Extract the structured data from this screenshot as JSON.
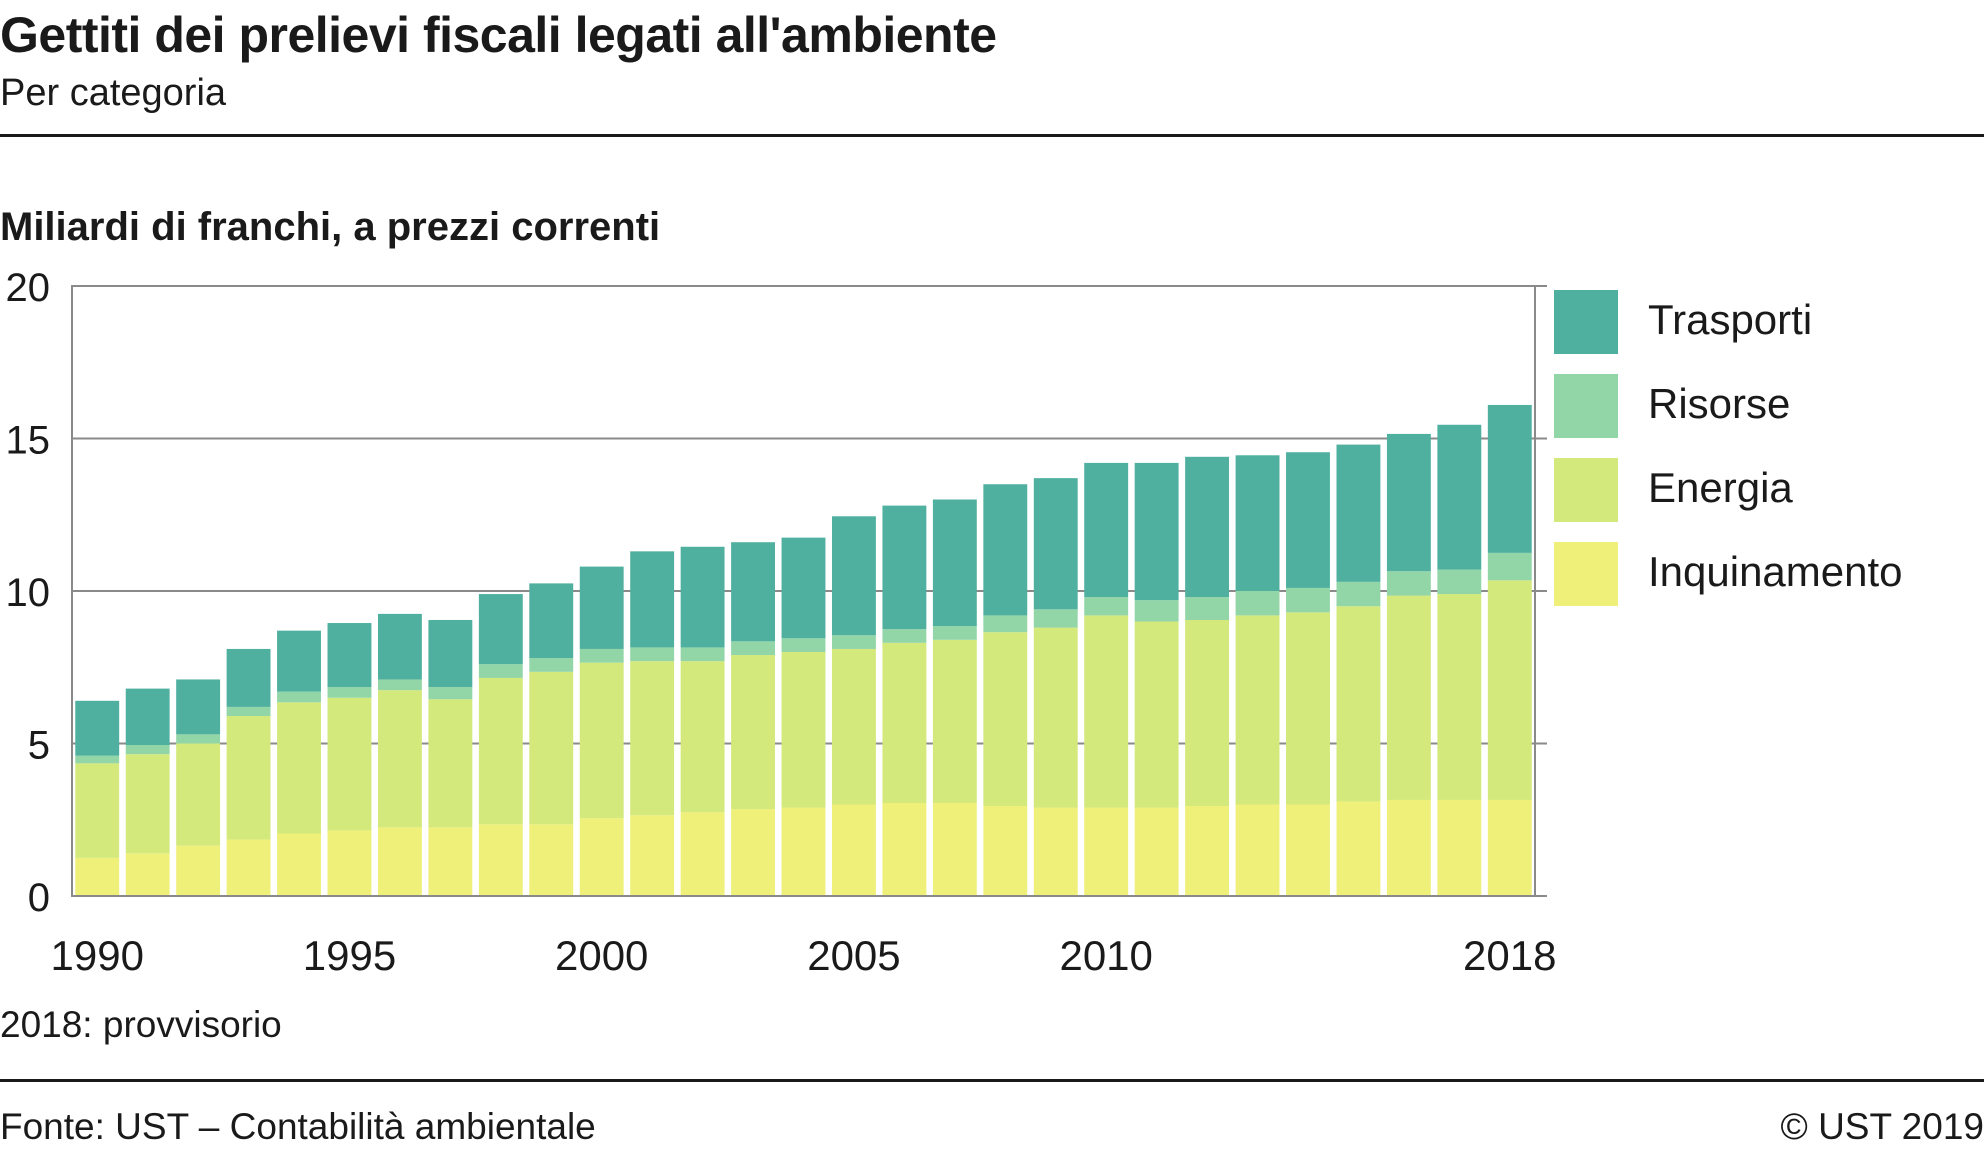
{
  "header": {
    "title": "Gettiti dei prelievi fiscali legati all'ambiente",
    "subtitle": "Per categoria"
  },
  "chart_unit": "Miliardi di franchi, a prezzi correnti",
  "footnote": "2018: provvisorio",
  "footer": {
    "source": "Fonte: UST – Contabilità ambientale",
    "copyright": "© UST 2019"
  },
  "colors": {
    "Trasporti": "#4fb09f",
    "Risorse": "#92d5a7",
    "Energia": "#d3e97b",
    "Inquinamento": "#eff07a",
    "grid": "#8a8a8a",
    "frame": "#8a8a8a",
    "text": "#1a1a1a"
  },
  "legend": [
    {
      "name": "Trasporti",
      "color": "#4fb09f"
    },
    {
      "name": "Risorse",
      "color": "#92d5a7"
    },
    {
      "name": "Energia",
      "color": "#d3e97b"
    },
    {
      "name": "Inquinamento",
      "color": "#eff07a"
    }
  ],
  "chart_data": {
    "type": "bar",
    "stacked": true,
    "title": "Gettiti dei prelievi fiscali legati all'ambiente",
    "subtitle": "Per categoria",
    "ylabel": "Miliardi di franchi, a prezzi correnti",
    "ylim": [
      0,
      20
    ],
    "yticks": [
      0,
      5,
      10,
      15,
      20
    ],
    "x": [
      1990,
      1991,
      1992,
      1993,
      1994,
      1995,
      1996,
      1997,
      1998,
      1999,
      2000,
      2001,
      2002,
      2003,
      2004,
      2005,
      2006,
      2007,
      2008,
      2009,
      2010,
      2011,
      2012,
      2013,
      2014,
      2015,
      2016,
      2017,
      2018
    ],
    "xtick_labels": [
      "1990",
      "1995",
      "2000",
      "2005",
      "2010",
      "2018"
    ],
    "grid": true,
    "legend_position": "right",
    "series": [
      {
        "name": "Inquinamento",
        "values": [
          1.25,
          1.4,
          1.65,
          1.85,
          2.05,
          2.15,
          2.25,
          2.25,
          2.35,
          2.35,
          2.55,
          2.65,
          2.75,
          2.85,
          2.9,
          3.0,
          3.05,
          3.05,
          2.95,
          2.9,
          2.9,
          2.9,
          2.95,
          3.0,
          3.0,
          3.1,
          3.15,
          3.15,
          3.15
        ]
      },
      {
        "name": "Energia",
        "values": [
          3.1,
          3.25,
          3.35,
          4.05,
          4.3,
          4.35,
          4.5,
          4.2,
          4.8,
          5.0,
          5.1,
          5.05,
          4.95,
          5.05,
          5.1,
          5.1,
          5.25,
          5.35,
          5.7,
          5.9,
          6.3,
          6.1,
          6.1,
          6.2,
          6.3,
          6.4,
          6.7,
          6.75,
          7.2
        ]
      },
      {
        "name": "Risorse",
        "values": [
          0.25,
          0.3,
          0.3,
          0.3,
          0.35,
          0.35,
          0.35,
          0.4,
          0.45,
          0.45,
          0.45,
          0.45,
          0.45,
          0.45,
          0.45,
          0.45,
          0.45,
          0.45,
          0.55,
          0.6,
          0.6,
          0.7,
          0.75,
          0.8,
          0.8,
          0.8,
          0.8,
          0.8,
          0.9
        ]
      },
      {
        "name": "Trasporti",
        "values": [
          1.8,
          1.85,
          1.8,
          1.9,
          2.0,
          2.1,
          2.15,
          2.2,
          2.3,
          2.45,
          2.7,
          3.15,
          3.3,
          3.25,
          3.3,
          3.9,
          4.05,
          4.15,
          4.3,
          4.3,
          4.4,
          4.5,
          4.6,
          4.45,
          4.45,
          4.5,
          4.5,
          4.75,
          4.85
        ]
      }
    ]
  }
}
